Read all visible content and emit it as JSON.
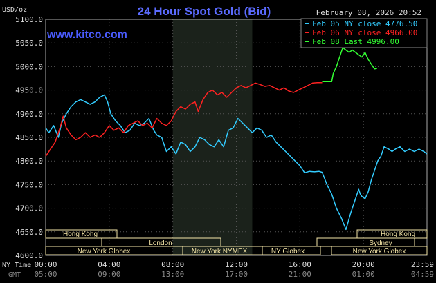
{
  "header": {
    "title": "24 Hour Spot Gold (Bid)",
    "date": "February 08, 2026 20:52",
    "site": "www.kitco.com",
    "unit": "USD/oz"
  },
  "legend": [
    {
      "label": "Feb 05 NY close 4776.50",
      "color": "#33ccff"
    },
    {
      "label": "Feb 06 NY close 4966.00",
      "color": "#ff2222"
    },
    {
      "label": "Feb 08 Last 4996.00",
      "color": "#33ff33"
    }
  ],
  "axis_labels": {
    "row1_prefix": "NY Time",
    "row2_prefix": "GMT",
    "ny_ticks": [
      "00:00",
      "04:00",
      "08:00",
      "12:00",
      "16:00",
      "20:00",
      "23:59"
    ],
    "gmt_ticks": [
      "05:00",
      "09:00",
      "13:00",
      "17:00",
      "21:00",
      "01:00",
      "04:59"
    ]
  },
  "sessions": {
    "hong_kong_1": "Hong Kong",
    "hong_kong_2": "Hong Kong",
    "london": "London",
    "sydney": "Sydney",
    "ny_globex_1": "New York Globex",
    "ny_nymex": "New York NYMEX",
    "ny_globex_2": "NY Globex",
    "ny_globex_3": "New York Globex"
  },
  "colors": {
    "background": "#000000",
    "grid": "#555555",
    "frame": "#aaaaaa",
    "title": "#5b6bff",
    "site": "#4a5cff",
    "shaded_region": "#1b221b",
    "session_box": "#f5e6a8"
  },
  "chart_data": {
    "type": "line",
    "ylim": [
      4600,
      5100
    ],
    "yticks": [
      4600,
      4650,
      4700,
      4750,
      4800,
      4850,
      4900,
      4950,
      5000,
      5050,
      5100
    ],
    "ytick_labels": [
      "4600.0",
      "4650.0",
      "4700.0",
      "4750.0",
      "4800.0",
      "4850.0",
      "4900.0",
      "4950.0",
      "5000.0",
      "5050.0",
      "5100.0"
    ],
    "xlim": [
      0,
      24
    ],
    "x_unit": "hours since 00:00 NY time",
    "shaded_hours": [
      8,
      13
    ],
    "series": [
      {
        "name": "Feb 05 NY close 4776.50",
        "color": "#33ccff",
        "x": [
          0,
          0.2,
          0.5,
          0.8,
          1.0,
          1.3,
          1.6,
          1.9,
          2.2,
          2.5,
          2.8,
          3.1,
          3.4,
          3.7,
          3.9,
          4.1,
          4.4,
          4.7,
          5.0,
          5.3,
          5.6,
          5.9,
          6.2,
          6.5,
          6.8,
          7.0,
          7.3,
          7.6,
          7.9,
          8.2,
          8.5,
          8.8,
          9.1,
          9.4,
          9.7,
          10.0,
          10.3,
          10.6,
          10.9,
          11.2,
          11.5,
          11.8,
          12.1,
          12.4,
          12.7,
          13.0,
          13.3,
          13.6,
          13.9,
          14.2,
          14.5,
          14.8,
          15.1,
          15.4,
          15.7,
          16.0,
          16.3,
          16.6,
          16.9,
          17.2,
          17.4,
          17.7,
          18.0,
          18.3,
          18.6,
          18.9,
          19.2,
          19.5,
          19.7,
          19.8,
          19.9,
          20.1,
          20.3,
          20.5,
          20.7,
          20.9,
          21.1,
          21.3,
          21.6,
          21.8,
          22.0,
          22.3,
          22.6,
          22.9,
          23.2,
          23.5,
          23.8,
          23.99
        ],
        "values": [
          4870,
          4860,
          4875,
          4850,
          4880,
          4900,
          4915,
          4925,
          4930,
          4925,
          4920,
          4925,
          4935,
          4940,
          4925,
          4900,
          4885,
          4875,
          4860,
          4865,
          4880,
          4875,
          4880,
          4890,
          4865,
          4855,
          4850,
          4820,
          4830,
          4815,
          4840,
          4835,
          4820,
          4830,
          4850,
          4845,
          4835,
          4830,
          4845,
          4830,
          4865,
          4870,
          4890,
          4880,
          4870,
          4860,
          4870,
          4865,
          4850,
          4855,
          4840,
          4830,
          4820,
          4810,
          4800,
          4790,
          4775,
          4778,
          4777,
          4778,
          4776,
          4750,
          4730,
          4700,
          4680,
          4655,
          4690,
          4720,
          4740,
          4730,
          4725,
          4720,
          4735,
          4760,
          4780,
          4800,
          4810,
          4830,
          4825,
          4820,
          4825,
          4830,
          4820,
          4825,
          4820,
          4825,
          4820,
          4815
        ]
      },
      {
        "name": "Feb 06 NY close 4966.00",
        "color": "#ff2222",
        "x": [
          0,
          0.3,
          0.6,
          0.9,
          1.1,
          1.3,
          1.6,
          1.9,
          2.2,
          2.5,
          2.8,
          3.1,
          3.4,
          3.7,
          4.0,
          4.3,
          4.6,
          4.9,
          5.2,
          5.5,
          5.8,
          6.1,
          6.4,
          6.7,
          7.0,
          7.3,
          7.6,
          7.9,
          8.2,
          8.5,
          8.8,
          9.1,
          9.4,
          9.6,
          9.9,
          10.2,
          10.5,
          10.8,
          11.1,
          11.4,
          11.7,
          12.0,
          12.3,
          12.6,
          12.9,
          13.2,
          13.5,
          13.8,
          14.1,
          14.4,
          14.7,
          15.0,
          15.3,
          15.6,
          15.9,
          16.2,
          16.5,
          16.8,
          17.1,
          17.4
        ],
        "values": [
          4810,
          4825,
          4840,
          4870,
          4895,
          4870,
          4855,
          4845,
          4850,
          4860,
          4850,
          4855,
          4850,
          4860,
          4875,
          4865,
          4870,
          4860,
          4875,
          4880,
          4885,
          4875,
          4880,
          4870,
          4890,
          4880,
          4875,
          4885,
          4905,
          4915,
          4910,
          4920,
          4925,
          4905,
          4930,
          4945,
          4950,
          4940,
          4945,
          4935,
          4945,
          4955,
          4960,
          4955,
          4960,
          4965,
          4962,
          4958,
          4960,
          4955,
          4950,
          4955,
          4948,
          4945,
          4950,
          4955,
          4960,
          4965,
          4966,
          4966
        ]
      },
      {
        "name": "Feb 08 Last 4996.00",
        "color": "#33ff33",
        "x": [
          17.4,
          17.7,
          18.0,
          18.1,
          18.3,
          18.5,
          18.7,
          18.9,
          19.1,
          19.3,
          19.5,
          19.7,
          19.9,
          20.1,
          20.3,
          20.5,
          20.7,
          20.85
        ],
        "values": [
          4968,
          4968,
          4968,
          4985,
          5000,
          5020,
          5040,
          5035,
          5030,
          5035,
          5030,
          5025,
          5020,
          5030,
          5015,
          5005,
          4995,
          4996
        ]
      }
    ]
  }
}
